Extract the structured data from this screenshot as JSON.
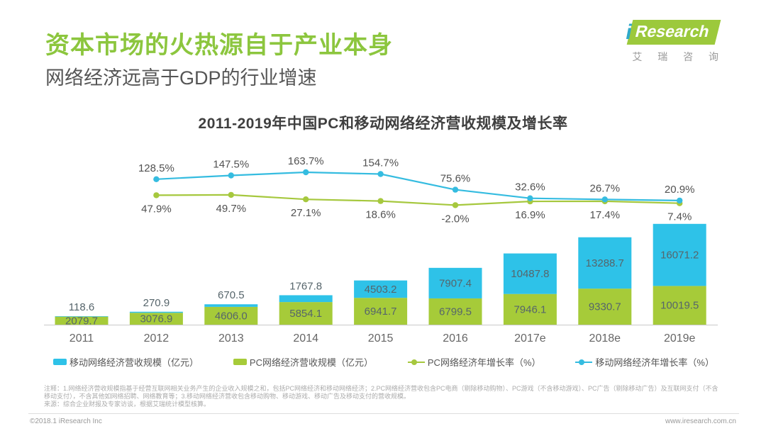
{
  "page": {
    "title": "资本市场的火热源自于产业本身",
    "subtitle": "网络经济远高于GDP的行业增速",
    "logo": {
      "i": "i",
      "brand": "Research",
      "caption": "艾 瑞 咨 询"
    },
    "footer_left": "©2018.1 iResearch Inc",
    "footer_right": "www.iresearch.com.cn"
  },
  "notes": {
    "line1": "注释：1.网络经济营收规模指基于经营互联网相关业务产生的企业收入规模之和，包括PC网络经济和移动网络经济；2.PC网络经济营收包含PC电商（剔除移动购物）、PC游戏（不含移动游戏）、PC广告（剔除移动广告）及互联网支付（不含",
    "line2": "移动支付），不含其他如网络招聘、网络教育等；3.移动网络经济营收包含移动购物、移动游戏、移动广告及移动支付的营收规模。",
    "line3": "来源：综合企业财报及专家访谈，根据艾瑞统计模型核算。"
  },
  "chart_data": {
    "type": "bar",
    "subtype": "stacked-bars-with-growth-lines",
    "title": "2011-2019年中国PC和移动网络经济营收规模及增长率",
    "categories": [
      "2011",
      "2012",
      "2013",
      "2014",
      "2015",
      "2016",
      "2017e",
      "2018e",
      "2019e"
    ],
    "bar_series": [
      {
        "name": "移动网络经济营收规模（亿元）",
        "color": "#2EC2E8",
        "values": [
          118.6,
          270.9,
          670.5,
          1767.8,
          4503.2,
          7907.4,
          10487.8,
          13288.7,
          16071.2
        ]
      },
      {
        "name": "PC网络经济营收规模（亿元）",
        "color": "#A6CB39",
        "values": [
          2079.7,
          3076.9,
          4606.0,
          5854.1,
          6941.7,
          6799.5,
          7946.1,
          9330.7,
          10019.5
        ]
      }
    ],
    "line_series": [
      {
        "name": "PC网络经济年增长率（%）",
        "color": "#A6C83E",
        "values": [
          null,
          47.9,
          49.7,
          27.1,
          18.6,
          -2.0,
          16.9,
          17.4,
          7.4
        ]
      },
      {
        "name": "移动网络经济年增长率（%）",
        "color": "#35BCE0",
        "values": [
          null,
          128.5,
          147.5,
          163.7,
          154.7,
          75.6,
          32.6,
          26.7,
          20.9
        ]
      }
    ],
    "legend_position": "bottom",
    "grid": false,
    "value_unit": "亿元",
    "growth_unit": "%"
  }
}
